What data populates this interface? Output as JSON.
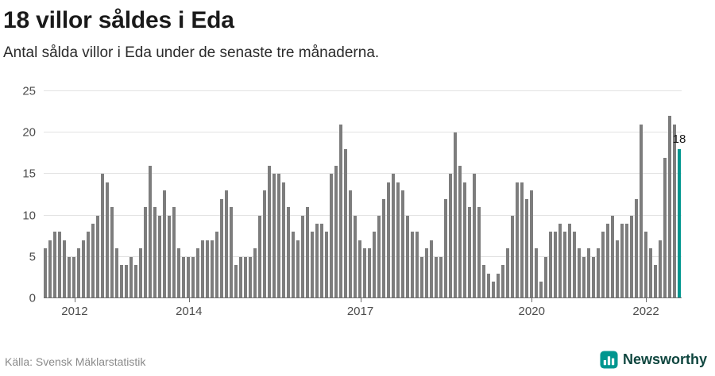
{
  "header": {
    "title": "18 villor såldes i Eda",
    "subtitle": "Antal sålda villor i Eda under de senaste tre månaderna."
  },
  "chart_data": {
    "type": "bar",
    "title": "18 villor såldes i Eda",
    "ylabel": "",
    "xlabel": "",
    "ylim": [
      0,
      25
    ],
    "yticks": [
      0,
      5,
      10,
      15,
      20,
      25
    ],
    "grid": true,
    "x_start": "2011-07",
    "x_freq": "monthly",
    "values": [
      6,
      7,
      8,
      8,
      7,
      5,
      5,
      6,
      7,
      8,
      9,
      10,
      15,
      14,
      11,
      6,
      4,
      4,
      5,
      4,
      6,
      11,
      16,
      11,
      10,
      13,
      10,
      11,
      6,
      5,
      5,
      5,
      6,
      7,
      7,
      7,
      8,
      12,
      13,
      11,
      4,
      5,
      5,
      5,
      6,
      10,
      13,
      16,
      15,
      15,
      14,
      11,
      8,
      7,
      10,
      11,
      8,
      9,
      9,
      8,
      15,
      16,
      21,
      18,
      13,
      10,
      7,
      6,
      6,
      8,
      10,
      12,
      14,
      15,
      14,
      13,
      10,
      8,
      8,
      5,
      6,
      7,
      5,
      5,
      12,
      15,
      20,
      16,
      14,
      11,
      15,
      11,
      4,
      3,
      2,
      3,
      4,
      6,
      10,
      14,
      14,
      12,
      13,
      6,
      2,
      5,
      8,
      8,
      9,
      8,
      9,
      8,
      6,
      5,
      6,
      5,
      6,
      8,
      9,
      10,
      7,
      9,
      9,
      10,
      12,
      21,
      8,
      6,
      4,
      7,
      17,
      22,
      21,
      18
    ],
    "xticks": [
      {
        "label": "2012",
        "index": 6
      },
      {
        "label": "2014",
        "index": 30
      },
      {
        "label": "2017",
        "index": 66
      },
      {
        "label": "2020",
        "index": 102
      },
      {
        "label": "2022",
        "index": 126
      }
    ],
    "highlight_index": 133,
    "annotation": {
      "text": "18"
    }
  },
  "footer": {
    "source": "Källa: Svensk Mäklarstatistik",
    "brand": "Newsworthy"
  },
  "colors": {
    "accent": "#00968f",
    "bar": "#7d7d7d",
    "title": "#1a1a1a",
    "text": "#2b2b2b",
    "axis": "#4d4d4d",
    "grid": "#e2e2e2",
    "baseline": "#6e6e6e",
    "muted": "#8a8a8a",
    "brand_text": "#0f463f"
  }
}
